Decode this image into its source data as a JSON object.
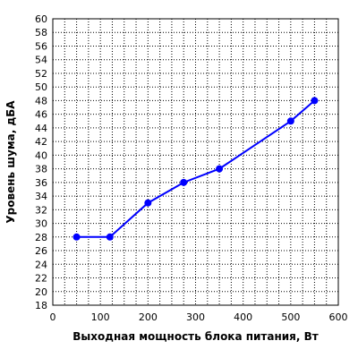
{
  "chart_data": {
    "type": "line",
    "title": "",
    "xlabel": "Выходная мощность блока питания, Вт",
    "ylabel": "Уровень шума, дБА",
    "xlim": [
      0,
      600
    ],
    "ylim": [
      18,
      60
    ],
    "xticks": [
      0,
      100,
      200,
      300,
      400,
      500,
      600
    ],
    "yticks": [
      18,
      20,
      22,
      24,
      26,
      28,
      30,
      32,
      34,
      36,
      38,
      40,
      42,
      44,
      46,
      48,
      50,
      52,
      54,
      56,
      58,
      60
    ],
    "grid": true,
    "legend": "none",
    "series": [
      {
        "color": "#0000ff",
        "x": [
          50,
          120,
          200,
          275,
          350,
          500,
          550
        ],
        "y": [
          28,
          28,
          33,
          36,
          38,
          45,
          48
        ]
      }
    ]
  }
}
